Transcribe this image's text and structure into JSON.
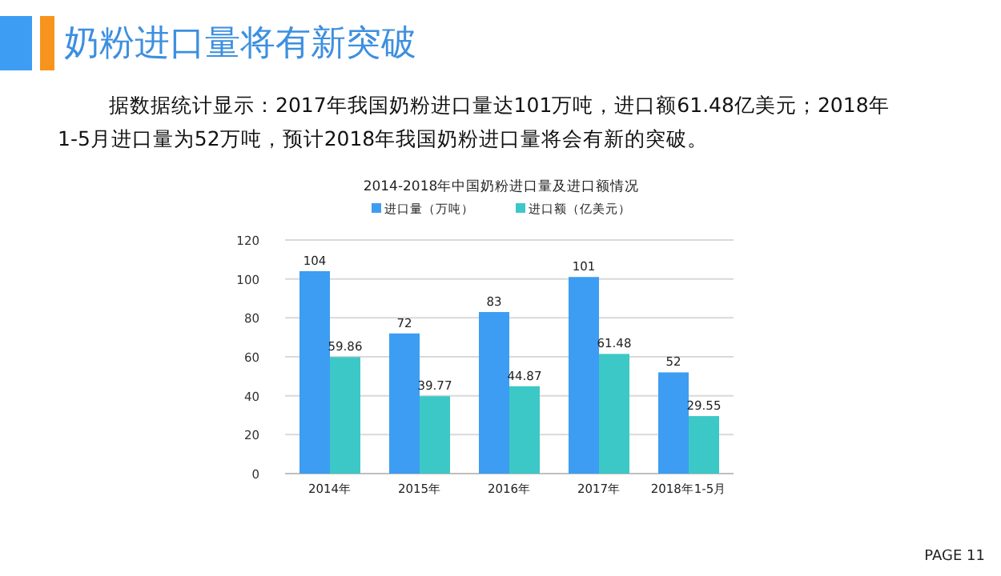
{
  "chart_data": {
    "type": "bar",
    "title": "2014-2018年中国奶粉进口量及进口额情况",
    "categories": [
      "2014年",
      "2015年",
      "2016年",
      "2017年",
      "2018年1-5月"
    ],
    "series": [
      {
        "name": "进口量（万吨）",
        "color": "#3d9df2",
        "values": [
          104,
          72,
          83,
          101,
          52
        ]
      },
      {
        "name": "进口额（亿美元）",
        "color": "#3cc8c6",
        "values": [
          59.86,
          39.77,
          44.87,
          61.48,
          29.55
        ]
      }
    ],
    "ylim": [
      0,
      120
    ],
    "yticks": [
      0,
      20,
      40,
      60,
      80,
      100,
      120
    ],
    "grid": "y",
    "legend": "top",
    "data_labels": true,
    "annotations": [
      "奶粉进口量将有新突破",
      "据数据统计显示：2017年我国奶粉进口量达101万吨，进口额61.48亿美元；2018年1-5月进口量为52万吨，预计2018年我国奶粉进口量将会有新的突破。",
      "PAGE  11"
    ]
  }
}
